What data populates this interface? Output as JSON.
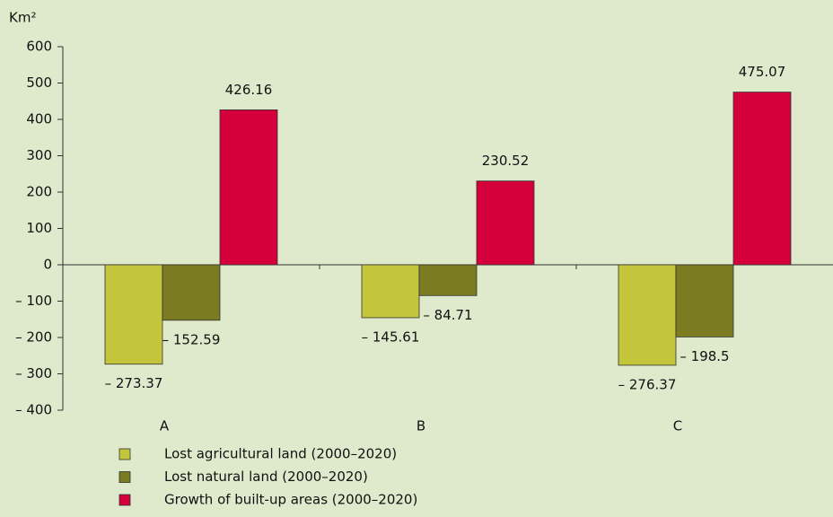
{
  "chart_data": {
    "type": "bar",
    "y_axis_label": "Km²",
    "categories": [
      "A",
      "B",
      "C"
    ],
    "series": [
      {
        "name": "Lost agricultural land (2000–2020)",
        "color": "#c3c63a",
        "values": [
          -273.37,
          -145.61,
          -276.37
        ],
        "value_labels": [
          "– 273.37",
          "– 145.61",
          "– 276.37"
        ]
      },
      {
        "name": "Lost natural land (2000–2020)",
        "color": "#7b7c22",
        "values": [
          -152.59,
          -84.71,
          -198.5
        ],
        "value_labels": [
          "– 152.59",
          "– 84.71",
          "– 198.5"
        ]
      },
      {
        "name": "Growth of built-up areas (2000–2020)",
        "color": "#d5003b",
        "values": [
          426.16,
          230.52,
          475.07
        ],
        "value_labels": [
          "426.16",
          "230.52",
          "475.07"
        ]
      }
    ],
    "ylim": [
      -400,
      600
    ],
    "yticks": [
      600,
      500,
      400,
      300,
      200,
      100,
      0,
      {
        "value": -100,
        "label": "– 100"
      },
      {
        "value": -200,
        "label": "– 200"
      },
      {
        "value": -300,
        "label": "– 300"
      },
      {
        "value": -400,
        "label": "– 400"
      }
    ]
  }
}
